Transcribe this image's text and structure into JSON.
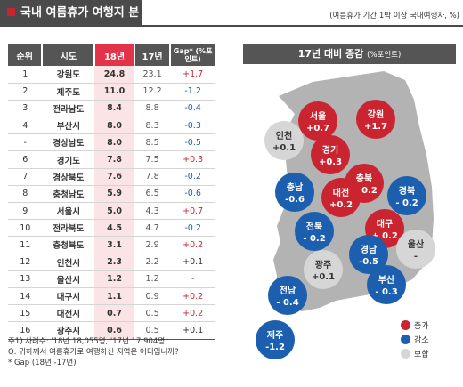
{
  "header": {
    "title": "국내 여름휴가 여행지 분포",
    "note": "(여름휴가 기간 1박 이상 국내여행자, %)"
  },
  "chart_data": [
    {
      "type": "table",
      "columns": [
        "순위",
        "시도",
        "18년",
        "17년",
        "Gap* (%포인트)"
      ],
      "rows": [
        {
          "rank": "1",
          "region": "강원도",
          "y18": "24.8",
          "y17": "23.1",
          "gap": "+1.7",
          "sign": "pos"
        },
        {
          "rank": "2",
          "region": "제주도",
          "y18": "11.0",
          "y17": "12.2",
          "gap": "-1.2",
          "sign": "neg"
        },
        {
          "rank": "3",
          "region": "전라남도",
          "y18": "8.4",
          "y17": "8.8",
          "gap": "-0.4",
          "sign": "neg"
        },
        {
          "rank": "4",
          "region": "부산시",
          "y18": "8.0",
          "y17": "8.3",
          "gap": "-0.3",
          "sign": "neg"
        },
        {
          "rank": "-",
          "region": "경상남도",
          "y18": "8.0",
          "y17": "8.5",
          "gap": "-0.5",
          "sign": "neg"
        },
        {
          "rank": "6",
          "region": "경기도",
          "y18": "7.8",
          "y17": "7.5",
          "gap": "+0.3",
          "sign": "pos"
        },
        {
          "rank": "7",
          "region": "경상북도",
          "y18": "7.6",
          "y17": "7.8",
          "gap": "-0.2",
          "sign": "neg"
        },
        {
          "rank": "8",
          "region": "충청남도",
          "y18": "5.9",
          "y17": "6.5",
          "gap": "-0.6",
          "sign": "neg"
        },
        {
          "rank": "9",
          "region": "서울시",
          "y18": "5.0",
          "y17": "4.3",
          "gap": "+0.7",
          "sign": "pos"
        },
        {
          "rank": "10",
          "region": "전라북도",
          "y18": "4.5",
          "y17": "4.7",
          "gap": "-0.2",
          "sign": "neg"
        },
        {
          "rank": "11",
          "region": "충청북도",
          "y18": "3.1",
          "y17": "2.9",
          "gap": "+0.2",
          "sign": "pos"
        },
        {
          "rank": "12",
          "region": "인천시",
          "y18": "2.3",
          "y17": "2.2",
          "gap": "+0.1",
          "sign": "zer"
        },
        {
          "rank": "13",
          "region": "울산시",
          "y18": "1.2",
          "y17": "1.2",
          "gap": "-",
          "sign": "zer"
        },
        {
          "rank": "14",
          "region": "대구시",
          "y18": "1.1",
          "y17": "0.9",
          "gap": "+0.2",
          "sign": "pos"
        },
        {
          "rank": "15",
          "region": "대전시",
          "y18": "0.7",
          "y17": "0.5",
          "gap": "+0.2",
          "sign": "pos"
        },
        {
          "rank": "16",
          "region": "광주시",
          "y18": "0.6",
          "y17": "0.5",
          "gap": "+0.1",
          "sign": "zer"
        }
      ]
    },
    {
      "type": "map",
      "title": "17년 대비 증감",
      "unit": "(%포인트)",
      "bubbles": [
        {
          "name": "서울",
          "value": "+0.7",
          "cat": "inc"
        },
        {
          "name": "강원",
          "value": "+1.7",
          "cat": "inc"
        },
        {
          "name": "인천",
          "value": "+0.1",
          "cat": "flat"
        },
        {
          "name": "경기",
          "value": "+0.3",
          "cat": "inc"
        },
        {
          "name": "충북",
          "value": "+ 0.2",
          "cat": "inc"
        },
        {
          "name": "충남",
          "value": "-0.6",
          "cat": "dec"
        },
        {
          "name": "대전",
          "value": "+0.2",
          "cat": "inc"
        },
        {
          "name": "경북",
          "value": "- 0.2",
          "cat": "dec"
        },
        {
          "name": "대구",
          "value": "+ 0.2",
          "cat": "inc"
        },
        {
          "name": "전북",
          "value": "- 0.2",
          "cat": "dec"
        },
        {
          "name": "울산",
          "value": "-",
          "cat": "flat"
        },
        {
          "name": "광주",
          "value": "+0.1",
          "cat": "flat"
        },
        {
          "name": "경남",
          "value": "-0.5",
          "cat": "dec"
        },
        {
          "name": "부산",
          "value": "- 0.3",
          "cat": "dec"
        },
        {
          "name": "전남",
          "value": "- 0.4",
          "cat": "dec"
        },
        {
          "name": "제주",
          "value": "-1.2",
          "cat": "dec"
        }
      ],
      "legend": [
        {
          "label": "증가",
          "cat": "inc"
        },
        {
          "label": "감소",
          "cat": "dec"
        },
        {
          "label": "보합",
          "cat": "flat"
        }
      ]
    }
  ],
  "colors": {
    "inc": "#c9242f",
    "dec": "#1c5fae",
    "flat": "#d6d6d6",
    "map": "#b3b3b3"
  },
  "footnotes": [
    "주1) 사례수: '18년 18,055명, '17년 17,904명",
    "Q. 귀하께서 여름휴가로 여행하신 지역은 어디입니까?",
    "* Gap (18년 -17년)"
  ]
}
